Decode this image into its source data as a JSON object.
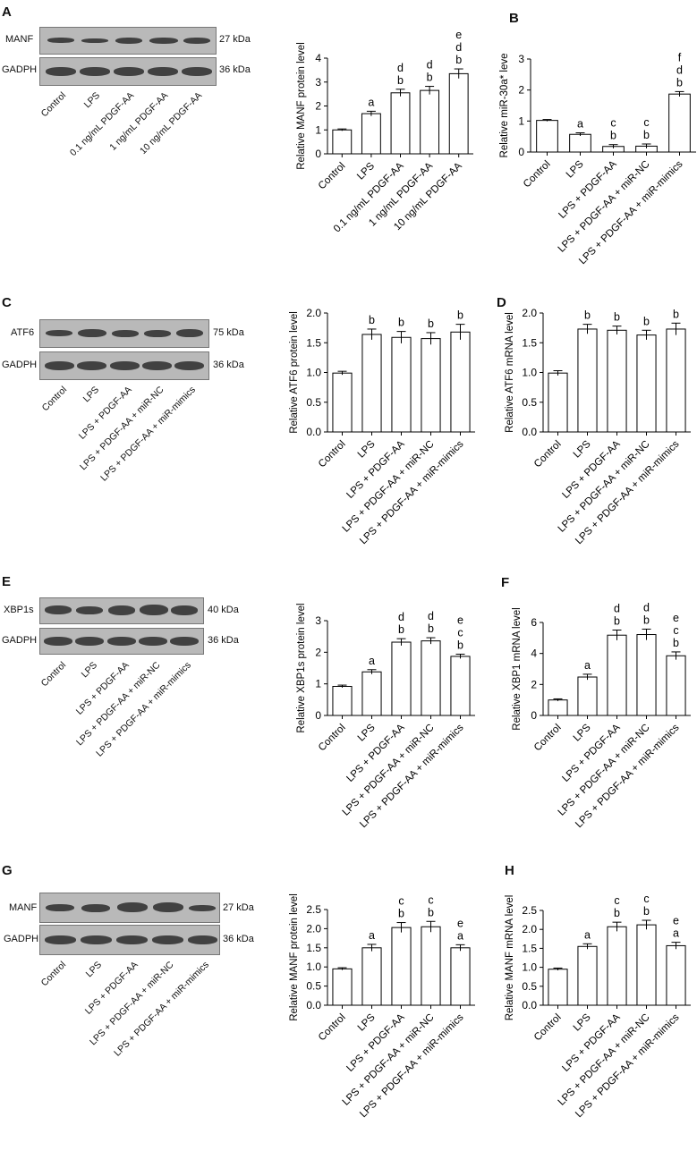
{
  "panels": [
    {
      "letter": "A",
      "blot": {
        "rows": [
          "MANF",
          "GADPH"
        ],
        "kda": [
          "27 kDa",
          "36 kDa"
        ],
        "lanes": [
          "Control",
          "LPS",
          "0.1 ng/mL PDGF-AA",
          "1 ng/mL PDGF-AA",
          "10 ng/mL PDGF-AA"
        ]
      }
    },
    {
      "letter": "B"
    },
    {
      "letter": "C",
      "blot": {
        "rows": [
          "ATF6",
          "GADPH"
        ],
        "kda": [
          "75 kDa",
          "36 kDa"
        ],
        "lanes": [
          "Control",
          "LPS",
          "LPS + PDGF-AA",
          "LPS + PDGF-AA + miR-NC",
          "LPS + PDGF-AA + miR-mimics"
        ]
      }
    },
    {
      "letter": "D"
    },
    {
      "letter": "E",
      "blot": {
        "rows": [
          "XBP1s",
          "GADPH"
        ],
        "kda": [
          "40 kDa",
          "36 kDa"
        ],
        "lanes": [
          "Control",
          "LPS",
          "LPS + PDGF-AA",
          "LPS + PDGF-AA + miR-NC",
          "LPS + PDGF-AA + miR-mimics"
        ]
      }
    },
    {
      "letter": "F"
    },
    {
      "letter": "G",
      "blot": {
        "rows": [
          "MANF",
          "GADPH"
        ],
        "kda": [
          "27 kDa",
          "36 kDa"
        ],
        "lanes": [
          "Control",
          "LPS",
          "LPS + PDGF-AA",
          "LPS + PDGF-AA + miR-NC",
          "LPS + PDGF-AA + miR-mimics"
        ]
      }
    },
    {
      "letter": "H"
    }
  ],
  "chart_data": [
    {
      "type": "bar",
      "panel": "A",
      "ylabel": "Relative MANF protein level",
      "ylim": [
        0,
        4
      ],
      "yticks": [
        0,
        1,
        2,
        3,
        4
      ],
      "categories": [
        "Control",
        "LPS",
        "0.1 ng/mL PDGF-AA",
        "1 ng/mL PDGF-AA",
        "10 ng/mL PDGF-AA"
      ],
      "values": [
        1.0,
        1.68,
        2.55,
        2.65,
        3.35
      ],
      "errors": [
        0.04,
        0.1,
        0.15,
        0.17,
        0.2
      ],
      "annotations": [
        [],
        [
          "a"
        ],
        [
          "d",
          "b"
        ],
        [
          "d",
          "b"
        ],
        [
          "e",
          "d",
          "b"
        ]
      ]
    },
    {
      "type": "bar",
      "panel": "B",
      "ylabel": "Relative miR-30a* leve",
      "ylim": [
        0,
        3
      ],
      "yticks": [
        0,
        1,
        2,
        3
      ],
      "categories": [
        "Control",
        "LPS",
        "LPS + PDGF-AA",
        "LPS + PDGF-AA + miR-NC",
        "LPS + PDGF-AA + miR-mimics"
      ],
      "values": [
        1.02,
        0.57,
        0.18,
        0.19,
        1.87
      ],
      "errors": [
        0.03,
        0.05,
        0.06,
        0.07,
        0.08
      ],
      "annotations": [
        [],
        [
          "a"
        ],
        [
          "c",
          "b"
        ],
        [
          "c",
          "b"
        ],
        [
          "f",
          "d",
          "b"
        ]
      ]
    },
    {
      "type": "bar",
      "panel": "C",
      "ylabel": "Relative ATF6 protein level",
      "ylim": [
        0,
        2.0
      ],
      "yticks": [
        "0.0",
        "0.5",
        "1.0",
        "1.5",
        "2.0"
      ],
      "categories": [
        "Control",
        "LPS",
        "LPS + PDGF-AA",
        "LPS + PDGF-AA + miR-NC",
        "LPS + PDGF-AA + miR-mimics"
      ],
      "values": [
        0.99,
        1.64,
        1.59,
        1.57,
        1.68
      ],
      "errors": [
        0.03,
        0.09,
        0.1,
        0.1,
        0.13
      ],
      "annotations": [
        [],
        [
          "b"
        ],
        [
          "b"
        ],
        [
          "b"
        ],
        [
          "b"
        ]
      ]
    },
    {
      "type": "bar",
      "panel": "D",
      "ylabel": "Relative ATF6 mRNA level",
      "ylim": [
        0,
        2.0
      ],
      "yticks": [
        "0.0",
        "0.5",
        "1.0",
        "1.5",
        "2.0"
      ],
      "categories": [
        "Control",
        "LPS",
        "LPS + PDGF-AA",
        "LPS + PDGF-AA + miR-NC",
        "LPS + PDGF-AA + miR-mimics"
      ],
      "values": [
        0.99,
        1.73,
        1.71,
        1.63,
        1.73
      ],
      "errors": [
        0.04,
        0.08,
        0.07,
        0.08,
        0.1
      ],
      "annotations": [
        [],
        [
          "b"
        ],
        [
          "b"
        ],
        [
          "b"
        ],
        [
          "b"
        ]
      ]
    },
    {
      "type": "bar",
      "panel": "E",
      "ylabel": "Relative XBP1s protein level",
      "ylim": [
        0,
        3
      ],
      "yticks": [
        0,
        1,
        2,
        3
      ],
      "categories": [
        "Control",
        "LPS",
        "LPS + PDGF-AA",
        "LPS + PDGF-AA + miR-NC",
        "LPS + PDGF-AA + miR-mimics"
      ],
      "values": [
        0.92,
        1.38,
        2.32,
        2.36,
        1.87
      ],
      "errors": [
        0.04,
        0.07,
        0.11,
        0.1,
        0.07
      ],
      "annotations": [
        [],
        [
          "a"
        ],
        [
          "d",
          "b"
        ],
        [
          "d",
          "b"
        ],
        [
          "e",
          "c",
          "b"
        ]
      ]
    },
    {
      "type": "bar",
      "panel": "F",
      "ylabel": "Relative XBP1 mRNA level",
      "ylim": [
        0,
        6
      ],
      "yticks": [
        0,
        2,
        4,
        6
      ],
      "categories": [
        "Control",
        "LPS",
        "LPS + PDGF-AA",
        "LPS + PDGF-AA + miR-NC",
        "LPS + PDGF-AA + miR-mimics"
      ],
      "values": [
        1.0,
        2.48,
        5.18,
        5.22,
        3.85
      ],
      "errors": [
        0.07,
        0.18,
        0.33,
        0.35,
        0.25
      ],
      "annotations": [
        [],
        [
          "a"
        ],
        [
          "d",
          "b"
        ],
        [
          "d",
          "b"
        ],
        [
          "e",
          "c",
          "b"
        ]
      ]
    },
    {
      "type": "bar",
      "panel": "G",
      "ylabel": "Relative MANF protein level",
      "ylim": [
        0,
        2.5
      ],
      "yticks": [
        "0.0",
        "0.5",
        "1.0",
        "1.5",
        "2.0",
        "2.5"
      ],
      "categories": [
        "Control",
        "LPS",
        "LPS + PDGF-AA",
        "LPS + PDGF-AA + miR-NC",
        "LPS + PDGF-AA + miR-mimics"
      ],
      "values": [
        0.95,
        1.5,
        2.03,
        2.05,
        1.5
      ],
      "errors": [
        0.03,
        0.09,
        0.13,
        0.14,
        0.08
      ],
      "annotations": [
        [],
        [
          "a"
        ],
        [
          "c",
          "b"
        ],
        [
          "c",
          "b"
        ],
        [
          "e",
          "a"
        ]
      ]
    },
    {
      "type": "bar",
      "panel": "H",
      "ylabel": "Relative MANF mRNA level",
      "ylim": [
        0,
        2.5
      ],
      "yticks": [
        "0.0",
        "0.5",
        "1.0",
        "1.5",
        "2.0",
        "2.5"
      ],
      "categories": [
        "Control",
        "LPS",
        "LPS + PDGF-AA",
        "LPS + PDGF-AA + miR-NC",
        "LPS + PDGF-AA + miR-mimics"
      ],
      "values": [
        0.95,
        1.55,
        2.07,
        2.12,
        1.57
      ],
      "errors": [
        0.03,
        0.07,
        0.12,
        0.12,
        0.09
      ],
      "annotations": [
        [],
        [
          "a"
        ],
        [
          "c",
          "b"
        ],
        [
          "c",
          "b"
        ],
        [
          "e",
          "a"
        ]
      ]
    }
  ]
}
